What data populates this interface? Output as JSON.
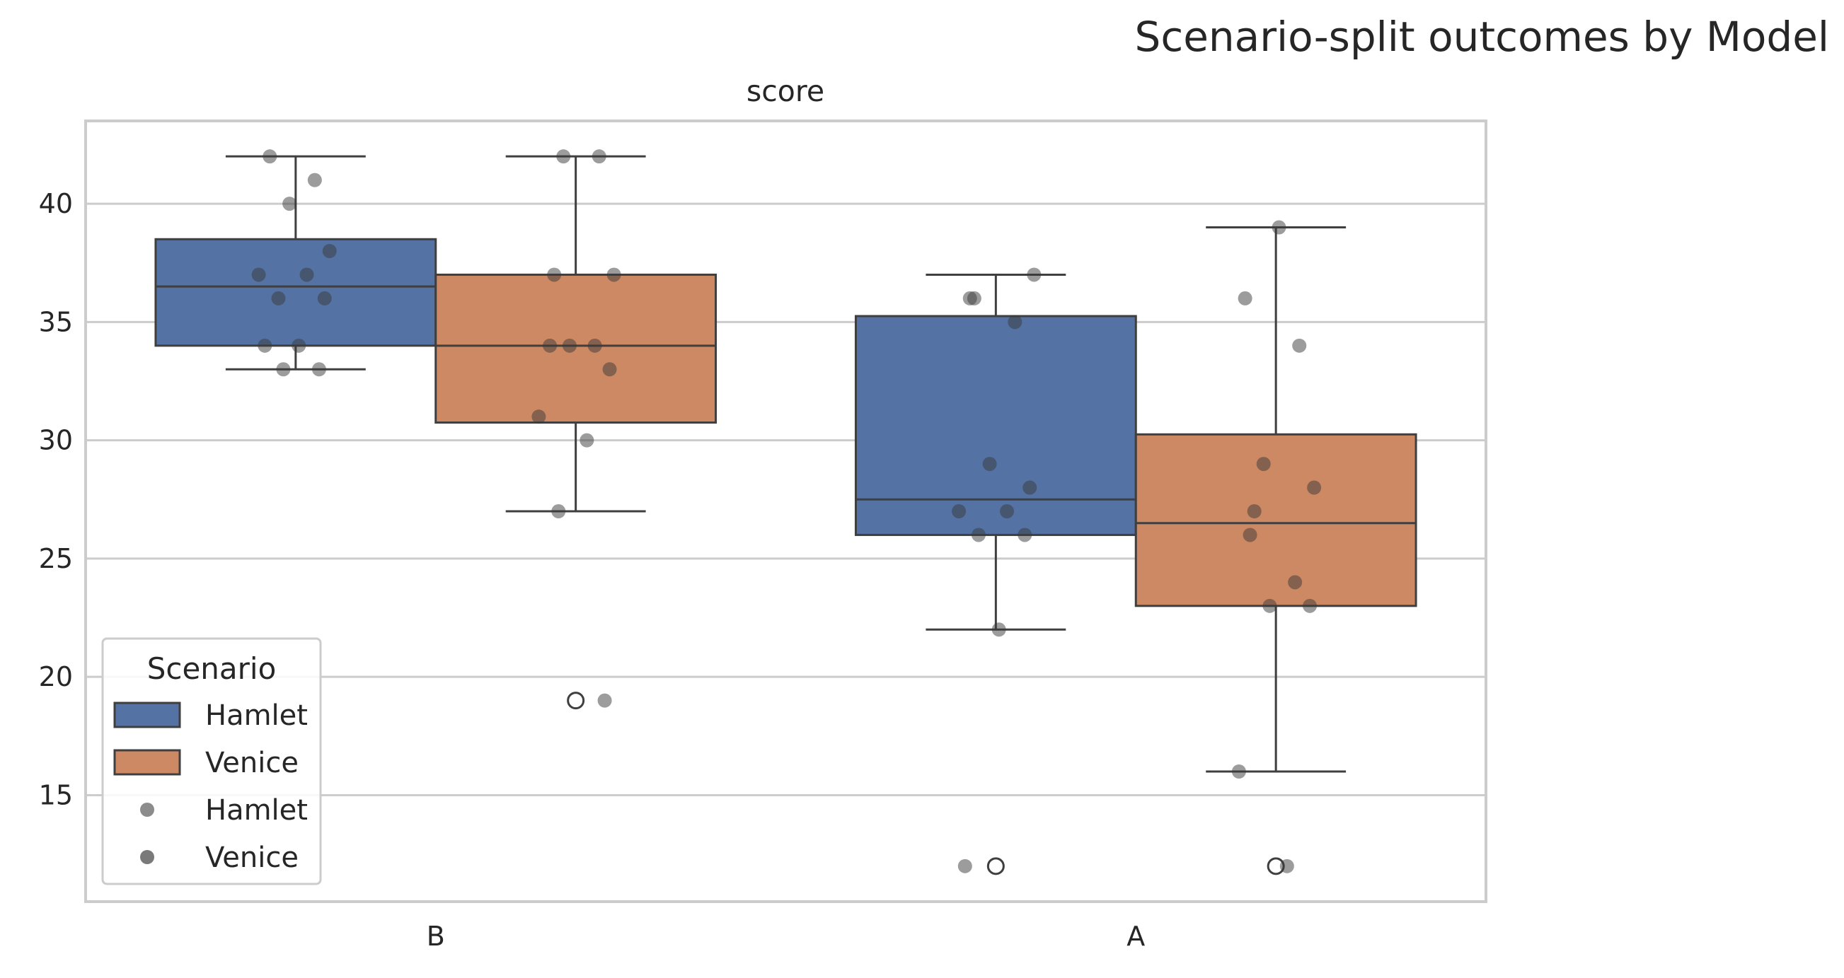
{
  "suptitle": "Scenario-split outcomes by Model",
  "chart_data": {
    "type": "box",
    "title": "score",
    "xlabel": "",
    "ylabel": "",
    "categories": [
      "B",
      "A"
    ],
    "ylim": [
      10.5,
      43.5
    ],
    "yticks": [
      15,
      20,
      25,
      30,
      35,
      40
    ],
    "grid": "horizontal",
    "hue": "Scenario",
    "series": [
      {
        "name": "Hamlet",
        "color": "#5572a4",
        "boxes": [
          {
            "category": "B",
            "whisker_low": 33,
            "q1": 34,
            "median": 36.5,
            "q3": 38.5,
            "whisker_high": 42,
            "fliers": []
          },
          {
            "category": "A",
            "whisker_low": 22,
            "q1": 26,
            "median": 27.5,
            "q3": 35.25,
            "whisker_high": 37,
            "fliers": [
              12
            ]
          }
        ],
        "points": {
          "B": [
            42,
            41,
            40,
            38,
            37,
            37,
            36,
            36,
            34,
            34,
            33,
            33
          ],
          "A": [
            37,
            36,
            36,
            35,
            29,
            28,
            27,
            27,
            26,
            26,
            22,
            12
          ]
        }
      },
      {
        "name": "Venice",
        "color": "#cc8963",
        "boxes": [
          {
            "category": "B",
            "whisker_low": 27,
            "q1": 30.75,
            "median": 34,
            "q3": 37,
            "whisker_high": 42,
            "fliers": [
              19
            ]
          },
          {
            "category": "A",
            "whisker_low": 16,
            "q1": 23,
            "median": 26.5,
            "q3": 30.25,
            "whisker_high": 39,
            "fliers": [
              12
            ]
          }
        ],
        "points": {
          "B": [
            42,
            42,
            37,
            37,
            34,
            34,
            34,
            33,
            31,
            30,
            27,
            19
          ],
          "A": [
            39,
            36,
            34,
            29,
            28,
            27,
            26,
            24,
            23,
            23,
            16,
            12
          ]
        }
      }
    ],
    "legend": {
      "title": "Scenario",
      "position": "lower-left",
      "entries": [
        {
          "label": "Hamlet",
          "kind": "box",
          "color": "#5572a4"
        },
        {
          "label": "Venice",
          "kind": "box",
          "color": "#cc8963"
        },
        {
          "label": "Hamlet",
          "kind": "point",
          "color": "#8c8c8c"
        },
        {
          "label": "Venice",
          "kind": "point",
          "color": "#7a7a7a"
        }
      ]
    }
  }
}
